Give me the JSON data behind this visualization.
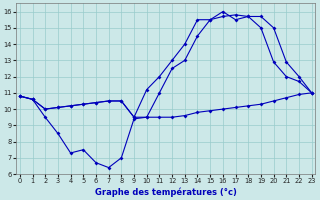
{
  "xlabel": "Graphe des températures (°c)",
  "bg_color": "#cce8e8",
  "grid_color": "#99cccc",
  "line_color": "#0000bb",
  "xlim": [
    0,
    23
  ],
  "ylim": [
    6,
    16.5
  ],
  "xticks": [
    0,
    1,
    2,
    3,
    4,
    5,
    6,
    7,
    8,
    9,
    10,
    11,
    12,
    13,
    14,
    15,
    16,
    17,
    18,
    19,
    20,
    21,
    22,
    23
  ],
  "yticks": [
    6,
    7,
    8,
    9,
    10,
    11,
    12,
    13,
    14,
    15,
    16
  ],
  "line1_x": [
    0,
    1,
    2,
    3,
    4,
    5,
    6,
    7,
    8,
    9,
    10,
    11,
    12,
    13,
    14,
    15,
    16,
    17,
    18,
    19,
    20,
    21,
    22,
    23
  ],
  "line1_y": [
    10.8,
    10.6,
    9.5,
    8.5,
    7.3,
    7.5,
    6.7,
    6.4,
    7.0,
    9.4,
    9.5,
    9.5,
    9.5,
    9.6,
    9.8,
    9.9,
    10.0,
    10.1,
    10.2,
    10.3,
    10.5,
    10.7,
    10.9,
    11.0
  ],
  "line2_x": [
    0,
    1,
    2,
    3,
    4,
    5,
    6,
    7,
    8,
    9,
    10,
    11,
    12,
    13,
    14,
    15,
    16,
    17,
    18,
    19,
    20,
    21,
    22,
    23
  ],
  "line2_y": [
    10.8,
    10.6,
    10.0,
    10.1,
    10.2,
    10.3,
    10.4,
    10.5,
    10.5,
    9.5,
    9.5,
    11.0,
    12.5,
    13.0,
    14.5,
    15.5,
    16.0,
    15.5,
    15.7,
    15.7,
    15.0,
    12.9,
    12.0,
    11.0
  ],
  "line3_x": [
    0,
    1,
    2,
    3,
    4,
    5,
    6,
    7,
    8,
    9,
    10,
    11,
    12,
    13,
    14,
    15,
    16,
    17,
    18,
    19,
    20,
    21,
    22,
    23
  ],
  "line3_y": [
    10.8,
    10.6,
    10.0,
    10.1,
    10.2,
    10.3,
    10.4,
    10.5,
    10.5,
    9.5,
    11.2,
    12.0,
    13.0,
    14.0,
    15.5,
    15.5,
    15.7,
    15.8,
    15.7,
    15.0,
    12.9,
    12.0,
    11.7,
    11.0
  ]
}
